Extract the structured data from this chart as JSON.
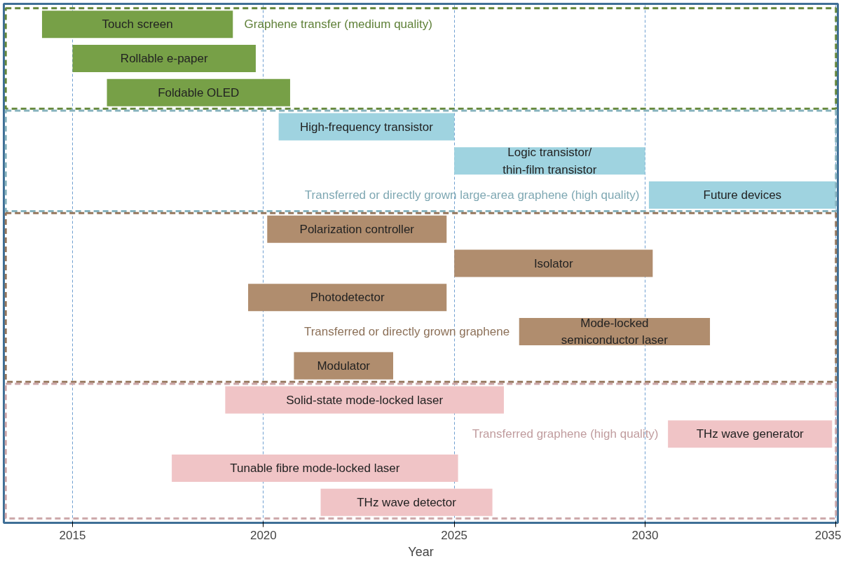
{
  "chart_data": {
    "type": "bar",
    "orientation": "horizontal",
    "xlabel": "Year",
    "categories": [
      "Touch screen",
      "Rollable e-paper",
      "Foldable OLED",
      "High-frequency transistor",
      "Logic transistor/\nthin-film transistor",
      "Future devices",
      "Polarization controller",
      "Isolator",
      "Photodetector",
      "Mode-locked\nsemiconductor laser",
      "Modulator",
      "Solid-state mode-locked laser",
      "THz wave generator",
      "Tunable fibre mode-locked laser",
      "THz wave detector"
    ],
    "series": [
      {
        "name": "Graphene transfer (medium quality)",
        "color": "#77a047",
        "values": [
          5.0,
          4.8,
          4.8,
          null,
          null,
          null,
          null,
          null,
          null,
          null,
          null,
          null,
          null,
          null,
          null
        ],
        "base": [
          2014.2,
          2015.0,
          2015.9,
          null,
          null,
          null,
          null,
          null,
          null,
          null,
          null,
          null,
          null,
          null,
          null
        ]
      },
      {
        "name": "Transferred or directly grown large-area graphene (high quality)",
        "color": "#9fd3e0",
        "values": [
          null,
          null,
          null,
          4.6,
          5.0,
          4.9,
          null,
          null,
          null,
          null,
          null,
          null,
          null,
          null,
          null
        ],
        "base": [
          null,
          null,
          null,
          2020.4,
          2025.0,
          2030.1,
          null,
          null,
          null,
          null,
          null,
          null,
          null,
          null,
          null
        ]
      },
      {
        "name": "Transferred or directly grown graphene",
        "color": "#b08d6e",
        "values": [
          null,
          null,
          null,
          null,
          null,
          null,
          4.7,
          5.2,
          5.2,
          5.0,
          2.6,
          null,
          null,
          null,
          null
        ],
        "base": [
          null,
          null,
          null,
          null,
          null,
          null,
          2020.1,
          2025.0,
          2019.6,
          2026.7,
          2020.8,
          null,
          null,
          null,
          null
        ]
      },
      {
        "name": "Transferred graphene (high quality)",
        "color": "#f0c4c6",
        "values": [
          null,
          null,
          null,
          null,
          null,
          null,
          null,
          null,
          null,
          null,
          null,
          7.3,
          4.3,
          7.5,
          4.5
        ],
        "base": [
          null,
          null,
          null,
          null,
          null,
          null,
          null,
          null,
          null,
          null,
          null,
          2019.0,
          2030.6,
          2017.6,
          2021.5
        ]
      }
    ],
    "xlim": [
      2013.2,
      2035.05
    ],
    "xticks": [
      2015,
      2020,
      2025,
      2030,
      2035
    ],
    "grid": "x",
    "tick_labels": "x"
  }
}
